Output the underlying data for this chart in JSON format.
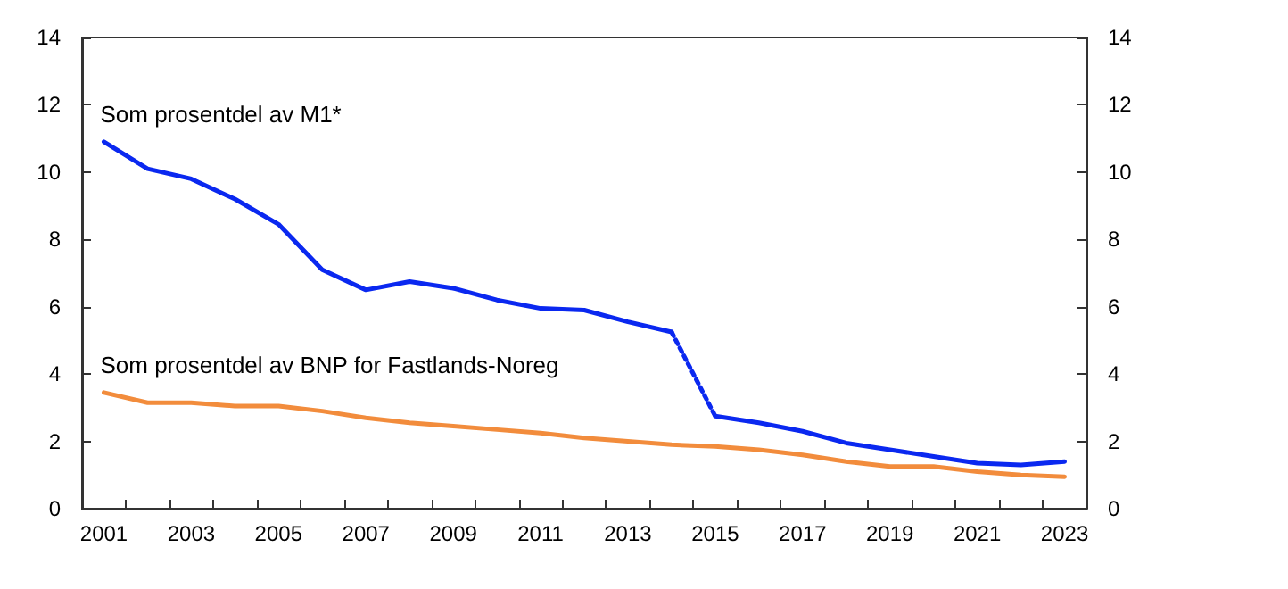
{
  "chart_data": {
    "type": "line",
    "categories": [
      "2001",
      null,
      "2003",
      null,
      "2005",
      null,
      "2007",
      null,
      "2009",
      null,
      "2011",
      null,
      "2013",
      null,
      "2015",
      null,
      "2017",
      null,
      "2019",
      null,
      "2021",
      null,
      "2023"
    ],
    "series": [
      {
        "name": "Som prosentdel av M1*",
        "color": "#0a28f0",
        "line_style": "solid",
        "values": [
          10.9,
          10.1,
          9.8,
          9.2,
          8.45,
          7.1,
          6.5,
          6.75,
          6.55,
          6.2,
          5.95,
          5.9,
          5.55,
          5.25,
          null,
          null,
          null,
          null,
          null,
          null,
          null,
          null,
          null
        ]
      },
      {
        "color": "#0a28f0",
        "line_style": "dotted",
        "values": [
          null,
          null,
          null,
          null,
          null,
          null,
          null,
          null,
          null,
          null,
          null,
          null,
          null,
          5.25,
          2.75,
          null,
          null,
          null,
          null,
          null,
          null,
          null,
          null
        ]
      },
      {
        "color": "#0a28f0",
        "line_style": "solid",
        "values": [
          null,
          null,
          null,
          null,
          null,
          null,
          null,
          null,
          null,
          null,
          null,
          null,
          null,
          null,
          2.75,
          2.55,
          2.3,
          1.95,
          1.75,
          1.55,
          1.35,
          1.3,
          1.4
        ]
      },
      {
        "name": "Som prosentdel av BNP for Fastlands-Noreg",
        "color": "#f28c3c",
        "line_style": "solid",
        "values": [
          3.45,
          3.15,
          3.15,
          3.05,
          3.05,
          2.9,
          2.7,
          2.55,
          2.45,
          2.35,
          2.25,
          2.1,
          2.0,
          1.9,
          1.85,
          1.75,
          1.6,
          1.4,
          1.25,
          1.25,
          1.1,
          1.0,
          0.95
        ]
      }
    ],
    "ylim": [
      0,
      14
    ],
    "yticks": [
      0,
      2,
      4,
      6,
      8,
      10,
      12,
      14
    ],
    "y2lim": [
      0,
      14
    ],
    "y2ticks": [
      0,
      2,
      4,
      6,
      8,
      10,
      12,
      14
    ],
    "grid": false,
    "legend": false,
    "marker": "none"
  }
}
